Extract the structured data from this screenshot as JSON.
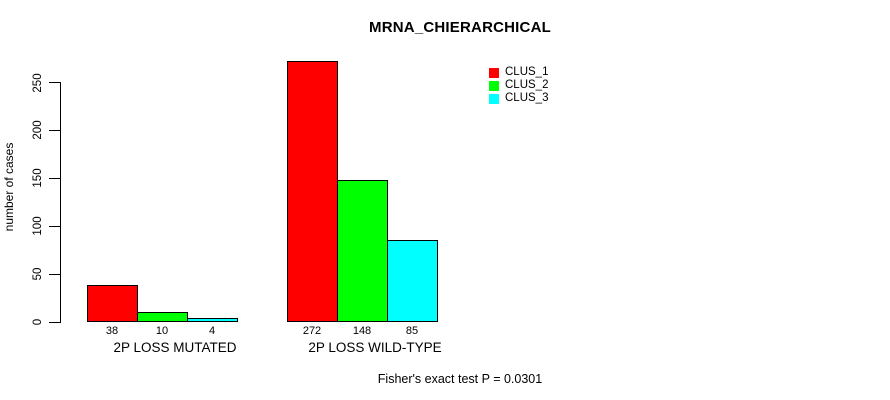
{
  "page": {
    "background": "#ffffff",
    "text_color": "#000000"
  },
  "chart_data": {
    "type": "bar",
    "title": "MRNA_CHIERARCHICAL",
    "ylabel": "number of cases",
    "xlabel": "",
    "categories": [
      "2P LOSS MUTATED",
      "2P LOSS WILD-TYPE"
    ],
    "series": [
      {
        "name": "CLUS_1",
        "color": "#ff0000",
        "values": [
          38,
          272
        ]
      },
      {
        "name": "CLUS_2",
        "color": "#00ff00",
        "values": [
          10,
          148
        ]
      },
      {
        "name": "CLUS_3",
        "color": "#00ffff",
        "values": [
          4,
          85
        ]
      }
    ],
    "bar_value_labels": [
      [
        "38",
        "10",
        "4"
      ],
      [
        "272",
        "148",
        "85"
      ]
    ],
    "yticks": [
      0,
      50,
      100,
      150,
      200,
      250
    ],
    "ylim": [
      0,
      285
    ],
    "grid": false,
    "legend_position": "top-right",
    "legend_entries": [
      "CLUS_1",
      "CLUS_2",
      "CLUS_3"
    ],
    "annotation": "Fisher's exact test P = 0.0301"
  }
}
